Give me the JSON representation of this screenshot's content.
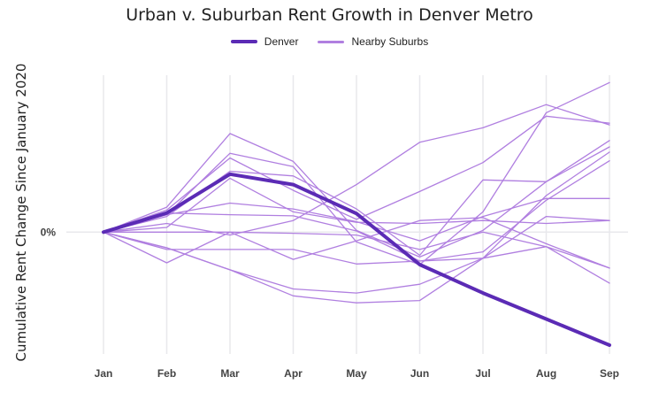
{
  "chart_data": {
    "type": "line",
    "title": "Urban v. Suburban Rent Growth in Denver Metro",
    "xlabel": "",
    "ylabel": "Cumulative Rent Change Since January 2020",
    "categories": [
      "Jan",
      "Feb",
      "Mar",
      "Apr",
      "May",
      "Jun",
      "Jul",
      "Aug",
      "Sep"
    ],
    "y_tick_labels": [
      {
        "value": 0,
        "label": "0%"
      }
    ],
    "ylim": [
      -1.95,
      2.6
    ],
    "grid": "vertical",
    "legend": {
      "placement": "top-center",
      "entries": [
        {
          "name": "Denver",
          "color": "#5b2bb5",
          "style": "thick"
        },
        {
          "name": "Nearby Suburbs",
          "color": "#b07fe0",
          "style": "thin"
        }
      ]
    },
    "series": [
      {
        "name": "Denver",
        "values": [
          0,
          0.33,
          1.0,
          0.82,
          0.32,
          -0.56,
          -1.05,
          -1.5,
          -1.95
        ]
      },
      {
        "name": "Nearby Suburbs",
        "values": [
          0,
          0.43,
          1.7,
          1.22,
          0.03,
          -0.43,
          0.03,
          0.87,
          1.58
        ]
      },
      {
        "name": "Nearby Suburbs",
        "values": [
          0,
          0.3,
          1.36,
          1.13,
          -0.17,
          -0.56,
          0.35,
          2.06,
          2.58
        ]
      },
      {
        "name": "Nearby Suburbs",
        "values": [
          0,
          0.38,
          1.28,
          0.72,
          0.22,
          0.7,
          1.2,
          2.0,
          1.88
        ]
      },
      {
        "name": "Nearby Suburbs",
        "values": [
          0,
          0.27,
          1.05,
          0.97,
          0.4,
          -0.4,
          0.9,
          0.87,
          1.47
        ]
      },
      {
        "name": "Nearby Suburbs",
        "values": [
          0,
          0.08,
          0.93,
          0.35,
          0.17,
          0.15,
          0.2,
          0.15,
          0.2
        ]
      },
      {
        "name": "Nearby Suburbs",
        "values": [
          0,
          0.3,
          0.5,
          0.4,
          0.18,
          -0.15,
          0.27,
          0.58,
          0.58
        ]
      },
      {
        "name": "Nearby Suburbs",
        "values": [
          0,
          0.33,
          0.3,
          0.28,
          0.02,
          -0.5,
          -0.34,
          0.55,
          1.23
        ]
      },
      {
        "name": "Nearby Suburbs",
        "values": [
          0,
          -0.53,
          0.0,
          -0.47,
          -0.15,
          0.2,
          0.25,
          -0.2,
          -0.62
        ]
      },
      {
        "name": "Nearby Suburbs",
        "values": [
          0,
          0.0,
          0.0,
          -0.02,
          -0.05,
          -0.3,
          0.0,
          -0.25,
          -0.88
        ]
      },
      {
        "name": "Nearby Suburbs",
        "values": [
          0,
          -0.3,
          -0.3,
          -0.3,
          -0.55,
          -0.5,
          -0.45,
          0.27,
          0.2
        ]
      },
      {
        "name": "Nearby Suburbs",
        "values": [
          0,
          -0.27,
          -0.65,
          -0.98,
          -1.05,
          -0.9,
          -0.45,
          -0.25,
          -0.62
        ]
      },
      {
        "name": "Nearby Suburbs",
        "values": [
          0,
          -0.27,
          -0.65,
          -1.1,
          -1.22,
          -1.18,
          -0.45,
          0.63,
          1.38
        ]
      },
      {
        "name": "Nearby Suburbs",
        "values": [
          0,
          0.15,
          -0.05,
          0.2,
          0.82,
          1.55,
          1.8,
          2.2,
          1.85
        ]
      }
    ]
  }
}
